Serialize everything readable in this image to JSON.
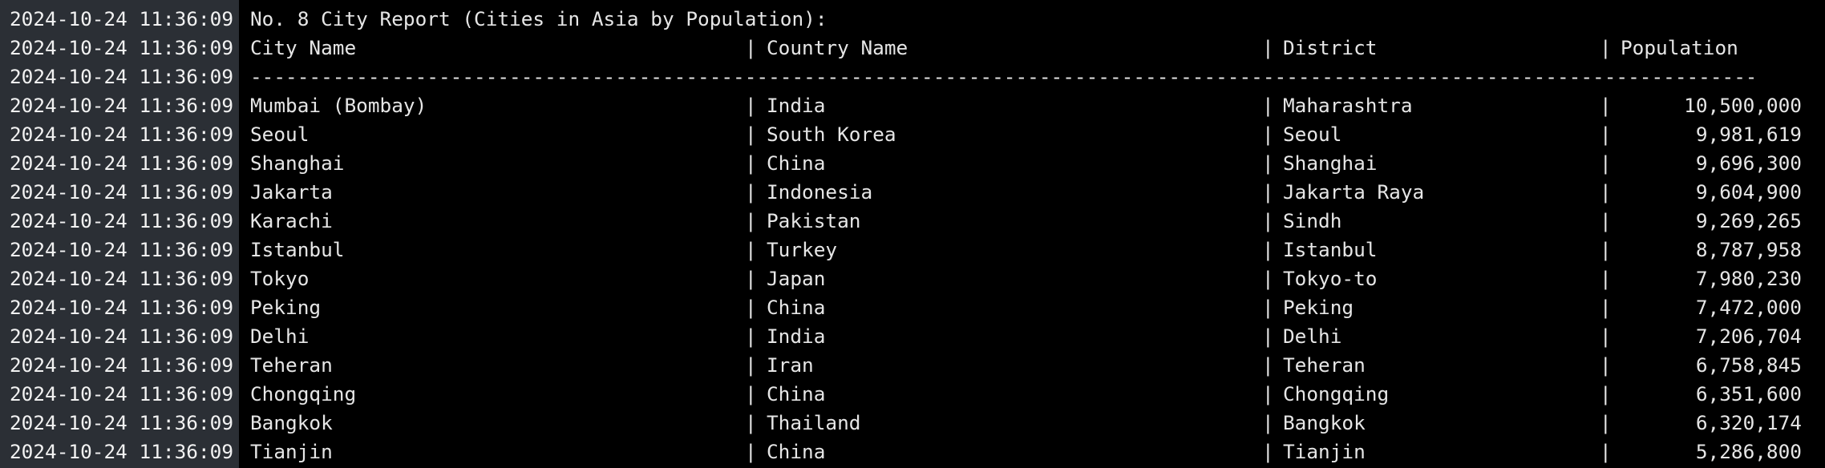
{
  "terminal": {
    "timestamp": "2024-10-24 11:36:09",
    "report_title": "No. 8 City Report (Cities in Asia by Population):",
    "separator": "|",
    "rule": "--------------------------------------------------------------------------------------------------------------------------------------------------",
    "headers": {
      "city": "City Name",
      "country": "Country Name",
      "district": "District",
      "population": "Population"
    },
    "rows": [
      {
        "city": "Mumbai (Bombay)",
        "country": "India",
        "district": "Maharashtra",
        "population": "10,500,000"
      },
      {
        "city": "Seoul",
        "country": "South Korea",
        "district": "Seoul",
        "population": "9,981,619"
      },
      {
        "city": "Shanghai",
        "country": "China",
        "district": "Shanghai",
        "population": "9,696,300"
      },
      {
        "city": "Jakarta",
        "country": "Indonesia",
        "district": "Jakarta Raya",
        "population": "9,604,900"
      },
      {
        "city": "Karachi",
        "country": "Pakistan",
        "district": "Sindh",
        "population": "9,269,265"
      },
      {
        "city": "Istanbul",
        "country": "Turkey",
        "district": "Istanbul",
        "population": "8,787,958"
      },
      {
        "city": "Tokyo",
        "country": "Japan",
        "district": "Tokyo-to",
        "population": "7,980,230"
      },
      {
        "city": "Peking",
        "country": "China",
        "district": "Peking",
        "population": "7,472,000"
      },
      {
        "city": "Delhi",
        "country": "India",
        "district": "Delhi",
        "population": "7,206,704"
      },
      {
        "city": "Teheran",
        "country": "Iran",
        "district": "Teheran",
        "population": "6,758,845"
      },
      {
        "city": "Chongqing",
        "country": "China",
        "district": "Chongqing",
        "population": "6,351,600"
      },
      {
        "city": "Bangkok",
        "country": "Thailand",
        "district": "Bangkok",
        "population": "6,320,174"
      },
      {
        "city": "Tianjin",
        "country": "China",
        "district": "Tianjin",
        "population": "5,286,800"
      }
    ]
  }
}
